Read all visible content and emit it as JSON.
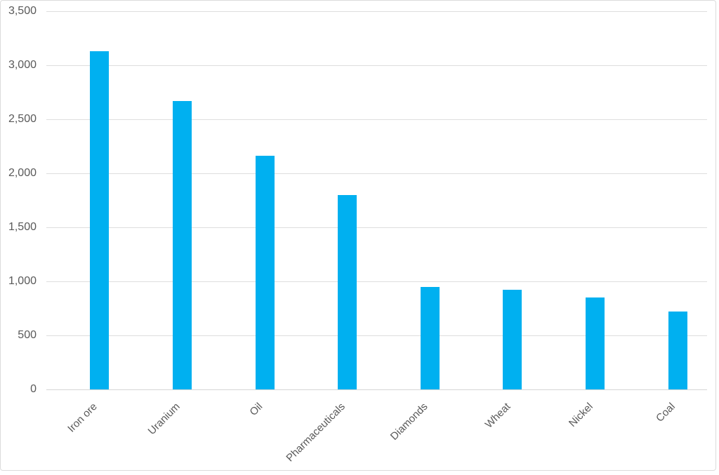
{
  "chart_data": {
    "type": "bar",
    "title": "",
    "xlabel": "",
    "ylabel": "",
    "categories": [
      "Iron ore",
      "Uranium",
      "Oil",
      "Pharmaceuticals",
      "Diamonds",
      "Wheat",
      "Nickel",
      "Coal"
    ],
    "values": [
      3130,
      2670,
      2160,
      1800,
      950,
      920,
      850,
      720
    ],
    "ylim": [
      0,
      3500
    ],
    "ytick_step": 500,
    "y_tick_labels": [
      "0",
      "500",
      "1,000",
      "1,500",
      "2,000",
      "2,500",
      "3,000",
      "3,500"
    ],
    "grid": true,
    "legend": false,
    "x_label_rotation_deg": 45,
    "colors": {
      "bar_fill": "#00B0F0",
      "gridline": "#DEDEDE",
      "axis_line": "#D6D6D6",
      "tick_label_text": "#595959",
      "frame_border": "#DBDBDB",
      "background": "#FFFFFF"
    }
  }
}
